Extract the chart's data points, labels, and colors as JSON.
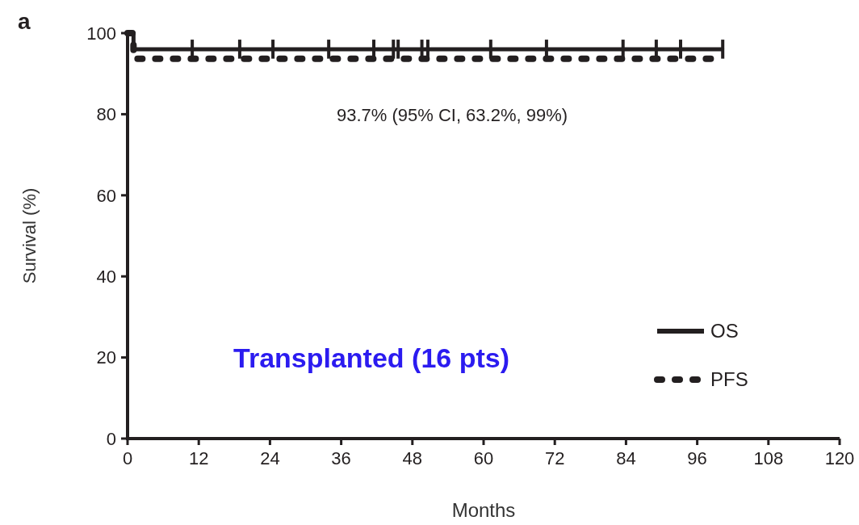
{
  "chart_data": {
    "type": "step",
    "title": "a",
    "xlabel": "Months",
    "ylabel": "Survival (%)",
    "annotations": [
      "93.7% (95% CI, 63.2%, 99%)",
      "Transplanted (16 pts)"
    ],
    "xlim": [
      0,
      120
    ],
    "xticks": [
      0,
      12,
      24,
      36,
      48,
      60,
      72,
      84,
      96,
      108,
      120
    ],
    "ylim": [
      0,
      100
    ],
    "yticks": [
      0,
      20,
      40,
      60,
      80,
      100
    ],
    "legend": "bottom right",
    "grid": false,
    "series": [
      {
        "name": "OS",
        "color": "#231f20",
        "line_style": "solid",
        "x": [
          0,
          1,
          10.9,
          18.9,
          24.5,
          33.9,
          41.5,
          44.8,
          45.6,
          49.6,
          50.6,
          61.2,
          70.6,
          83.5,
          89.1,
          93.2,
          100.3
        ],
        "values": [
          100,
          96,
          96,
          96,
          96,
          96,
          96,
          96,
          96,
          96,
          96,
          96,
          96,
          96,
          96,
          96,
          96
        ]
      },
      {
        "name": "PFS",
        "color": "#231f20",
        "line_style": "dotted",
        "x": [
          0,
          1,
          10.9,
          18.9,
          24.5,
          33.9,
          41.5,
          44.8,
          45.6,
          49.6,
          50.6,
          61.2,
          70.6,
          83.5,
          89.1,
          93.2,
          100.3
        ],
        "values": [
          100,
          93.7,
          93.7,
          93.7,
          93.7,
          93.7,
          93.7,
          93.7,
          93.7,
          93.7,
          93.7,
          93.7,
          93.7,
          93.7,
          93.7,
          93.7,
          93.7
        ]
      }
    ]
  }
}
